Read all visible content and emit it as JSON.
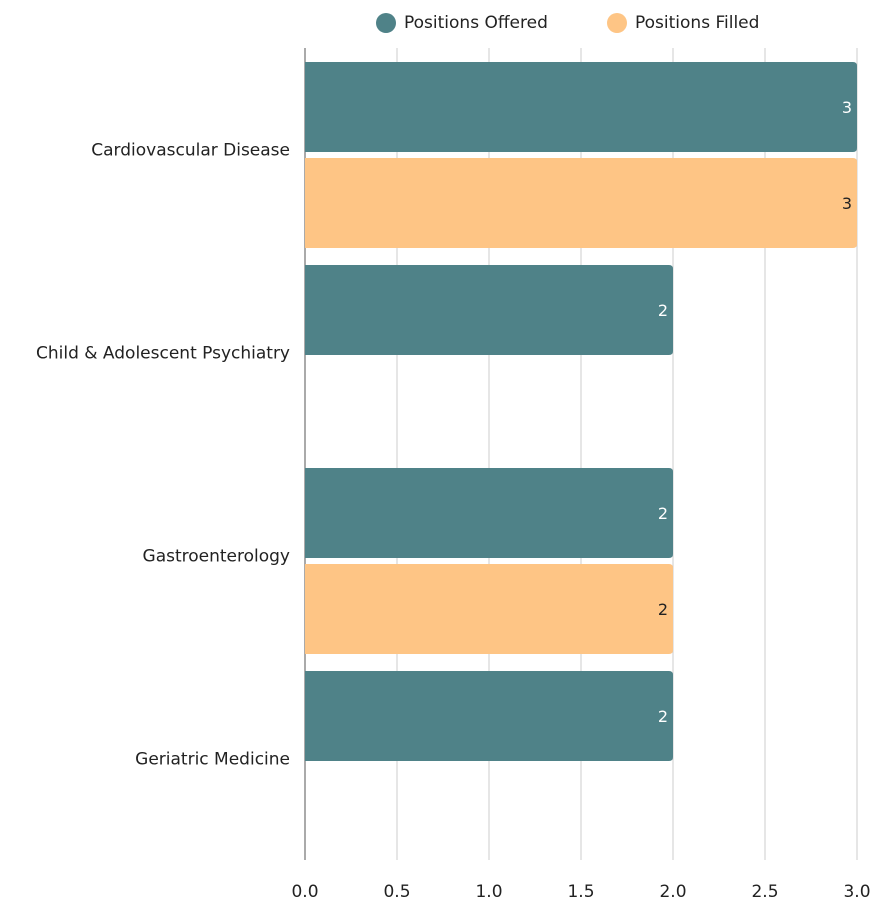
{
  "chart_data": {
    "type": "bar",
    "orientation": "horizontal",
    "categories": [
      "Cardiovascular Disease",
      "Child & Adolescent Psychiatry",
      "Gastroenterology",
      "Geriatric Medicine"
    ],
    "series": [
      {
        "name": "Positions Offered",
        "color": "#4f8288",
        "label_color": "#ffffff",
        "values": [
          3,
          2,
          2,
          2
        ]
      },
      {
        "name": "Positions Filled",
        "color": "#fec585",
        "label_color": "#222222",
        "values": [
          3,
          null,
          2,
          null
        ]
      }
    ],
    "xlim": [
      0,
      3
    ],
    "xticks": [
      "0.0",
      "0.5",
      "1.0",
      "1.5",
      "2.0",
      "2.5",
      "3.0"
    ],
    "grid": "vertical",
    "legend_position": "top",
    "title": "",
    "xlabel": "",
    "ylabel": ""
  }
}
